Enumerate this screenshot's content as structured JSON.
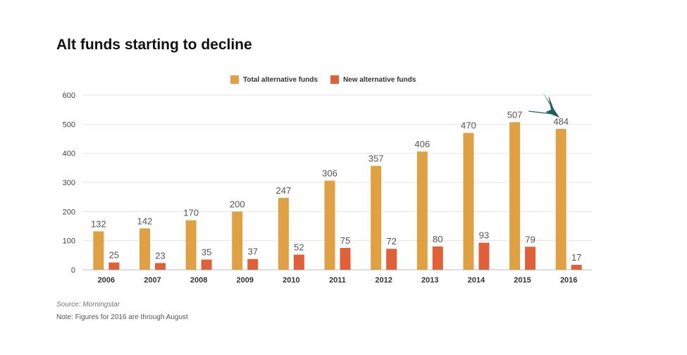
{
  "chart_data": {
    "type": "bar",
    "title": "Alt funds starting to decline",
    "categories": [
      "2006",
      "2007",
      "2008",
      "2009",
      "2010",
      "2011",
      "2012",
      "2013",
      "2014",
      "2015",
      "2016"
    ],
    "series": [
      {
        "name": "Total alternative funds",
        "values": [
          132,
          142,
          170,
          200,
          247,
          306,
          357,
          406,
          470,
          507,
          484
        ],
        "color": "#E0A044"
      },
      {
        "name": "New alternative funds",
        "values": [
          25,
          23,
          35,
          37,
          52,
          75,
          72,
          80,
          93,
          79,
          17
        ],
        "color": "#E0603A"
      }
    ],
    "ylim": [
      0,
      600
    ],
    "yticks": [
      0,
      100,
      200,
      300,
      400,
      500,
      600
    ],
    "grid": true,
    "legend_position": "top-center",
    "annotation": {
      "type": "arrow",
      "target": "2016",
      "color": "#1E5E5C"
    }
  },
  "source": "Source: Morningstar",
  "note": "Note: Figures for 2016 are through August"
}
